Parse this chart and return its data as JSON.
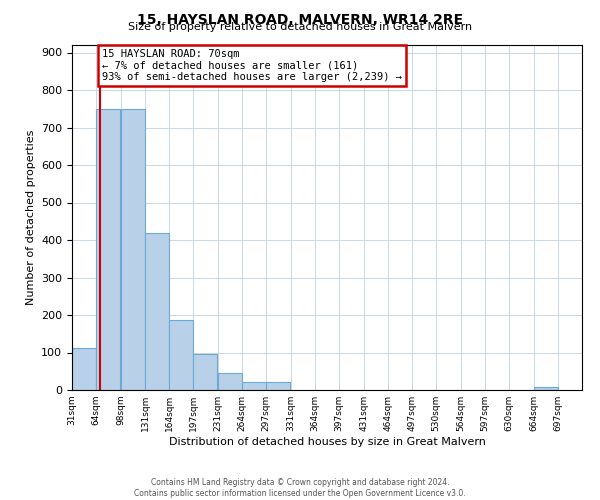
{
  "title": "15, HAYSLAN ROAD, MALVERN, WR14 2RE",
  "subtitle": "Size of property relative to detached houses in Great Malvern",
  "xlabel": "Distribution of detached houses by size in Great Malvern",
  "ylabel": "Number of detached properties",
  "bin_edges": [
    31,
    64,
    98,
    131,
    164,
    197,
    231,
    264,
    297,
    331,
    364,
    397,
    431,
    464,
    497,
    530,
    564,
    597,
    630,
    664,
    697
  ],
  "bin_counts": [
    113,
    750,
    750,
    420,
    188,
    95,
    45,
    22,
    22,
    0,
    0,
    0,
    0,
    0,
    0,
    0,
    0,
    0,
    0,
    8
  ],
  "bar_color": "#b8d0e8",
  "bar_edge_color": "#6aaad4",
  "property_size": 70,
  "property_line_color": "#cc0000",
  "annotation_text": "15 HAYSLAN ROAD: 70sqm\n← 7% of detached houses are smaller (161)\n93% of semi-detached houses are larger (2,239) →",
  "annotation_box_color": "#ffffff",
  "annotation_box_edge": "#cc0000",
  "ylim": [
    0,
    920
  ],
  "yticks": [
    0,
    100,
    200,
    300,
    400,
    500,
    600,
    700,
    800,
    900
  ],
  "tick_labels": [
    "31sqm",
    "64sqm",
    "98sqm",
    "131sqm",
    "164sqm",
    "197sqm",
    "231sqm",
    "264sqm",
    "297sqm",
    "331sqm",
    "364sqm",
    "397sqm",
    "431sqm",
    "464sqm",
    "497sqm",
    "530sqm",
    "564sqm",
    "597sqm",
    "630sqm",
    "664sqm",
    "697sqm"
  ],
  "footer1": "Contains HM Land Registry data © Crown copyright and database right 2024.",
  "footer2": "Contains public sector information licensed under the Open Government Licence v3.0.",
  "background_color": "#ffffff",
  "grid_color": "#c8d8e8"
}
